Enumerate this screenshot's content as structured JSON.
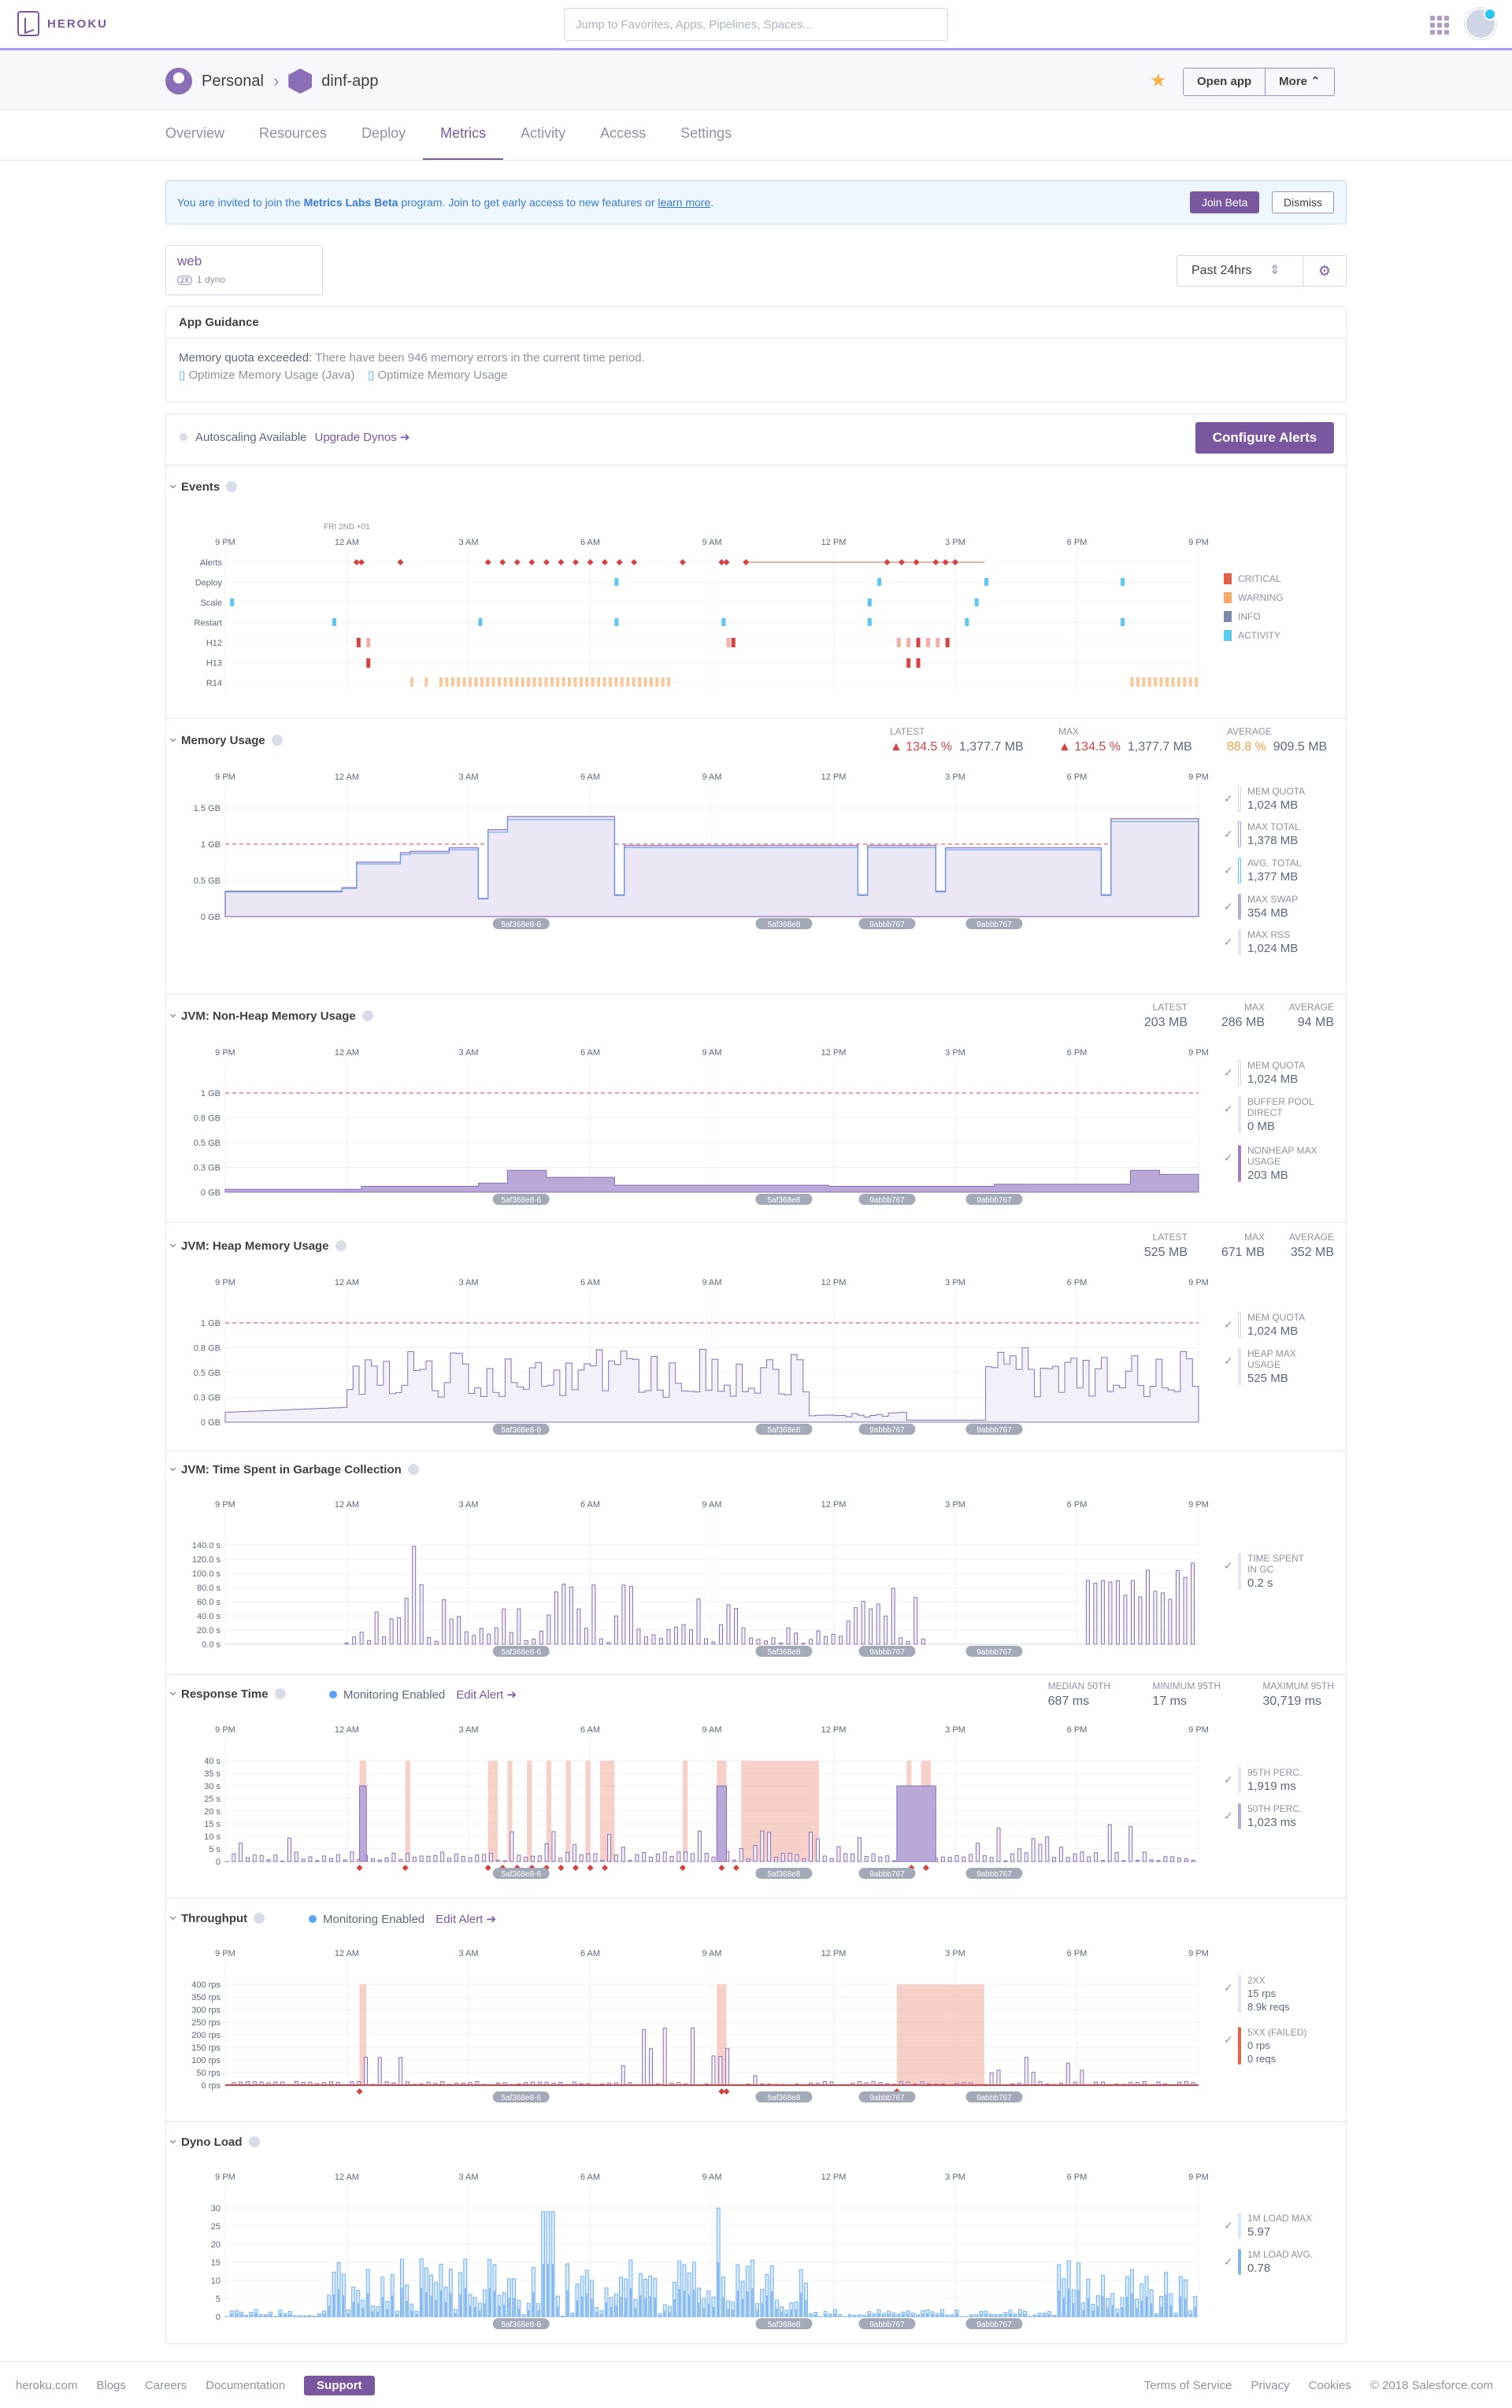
{
  "topbar": {
    "logo_text": "HEROKU",
    "search_placeholder": "Jump to Favorites, Apps, Pipelines, Spaces..."
  },
  "breadcrumb": {
    "owner": "Personal",
    "app": "dinf-app"
  },
  "header_buttons": {
    "open_app": "Open app",
    "more": "More ⌃"
  },
  "tabs": [
    "Overview",
    "Resources",
    "Deploy",
    "Metrics",
    "Activity",
    "Access",
    "Settings"
  ],
  "active_tab": "Metrics",
  "banner": {
    "text_pre": "You are invited to join the ",
    "program": "Metrics Labs Beta",
    "text_post": " program. Join to get early access to new features or ",
    "link": "learn more",
    "end": ".",
    "join": "Join Beta",
    "dismiss": "Dismiss"
  },
  "dyno": {
    "name": "web",
    "size": "1 dyno",
    "badge": "2X"
  },
  "time_range": "Past 24hrs",
  "guidance": {
    "title": "App Guidance",
    "quota_label": "Memory quota exceeded:",
    "quota_text": " There have been 946 memory errors in the current time period.",
    "link1": "Optimize Memory Usage (Java)",
    "link2": "Optimize Memory Usage"
  },
  "autoscaling": {
    "label": "Autoscaling Available",
    "upgrade": "Upgrade Dynos"
  },
  "configure_alerts": "Configure Alerts",
  "x_ticks": [
    "9 PM",
    "12 AM",
    "3 AM",
    "6 AM",
    "9 AM",
    "12 PM",
    "3 PM",
    "6 PM",
    "9 PM"
  ],
  "date_marker": "FRI 2ND +01",
  "releases": [
    "5af368e8-6",
    "5af368e8",
    "9abbb767",
    "9abbb767"
  ],
  "events": {
    "title": "Events",
    "rows": [
      "Alerts",
      "Deploy",
      "Scale",
      "Restart",
      "H12",
      "H13",
      "R14"
    ],
    "legend": [
      {
        "label": "CRITICAL",
        "color": "#e0634a"
      },
      {
        "label": "WARNING",
        "color": "#f5a96b"
      },
      {
        "label": "INFO",
        "color": "#7a8ba8"
      },
      {
        "label": "ACTIVITY",
        "color": "#5bc8f0"
      }
    ]
  },
  "memory": {
    "title": "Memory Usage",
    "stats": [
      {
        "label": "LATEST",
        "pct": "134.5 %",
        "val": "1,377.7 MB"
      },
      {
        "label": "MAX",
        "pct": "134.5 %",
        "val": "1,377.7 MB"
      },
      {
        "label": "AVERAGE",
        "pct": "88.8 %",
        "val": "909.5 MB"
      }
    ],
    "y_ticks": [
      "1.5 GB",
      "1 GB",
      "0.5 GB",
      "0 GB"
    ],
    "legend": [
      {
        "label": "MEM QUOTA",
        "value": "1,024 MB"
      },
      {
        "label": "MAX TOTAL",
        "value": "1,378 MB"
      },
      {
        "label": "AVG. TOTAL",
        "value": "1,377 MB"
      },
      {
        "label": "MAX SWAP",
        "value": "354 MB"
      },
      {
        "label": "MAX RSS",
        "value": "1,024 MB"
      }
    ]
  },
  "nonheap": {
    "title": "JVM: Non-Heap Memory Usage",
    "stats": [
      {
        "label": "LATEST",
        "val": "203 MB"
      },
      {
        "label": "MAX",
        "val": "286 MB"
      },
      {
        "label": "AVERAGE",
        "val": "94 MB"
      }
    ],
    "y_ticks": [
      "1 GB",
      "0.8 GB",
      "0.5 GB",
      "0.3 GB",
      "0 GB"
    ],
    "legend": [
      {
        "label": "MEM QUOTA",
        "value": "1,024 MB"
      },
      {
        "label": "BUFFER POOL DIRECT",
        "value": "0 MB"
      },
      {
        "label": "NONHEAP MAX USAGE",
        "value": "203 MB"
      }
    ]
  },
  "heap": {
    "title": "JVM: Heap Memory Usage",
    "stats": [
      {
        "label": "LATEST",
        "val": "525 MB"
      },
      {
        "label": "MAX",
        "val": "671 MB"
      },
      {
        "label": "AVERAGE",
        "val": "352 MB"
      }
    ],
    "y_ticks": [
      "1 GB",
      "0.8 GB",
      "0.5 GB",
      "0.3 GB",
      "0 GB"
    ],
    "legend": [
      {
        "label": "MEM QUOTA",
        "value": "1,024 MB"
      },
      {
        "label": "HEAP MAX USAGE",
        "value": "525 MB"
      }
    ]
  },
  "gc": {
    "title": "JVM: Time Spent in Garbage Collection",
    "y_ticks": [
      "140.0 s",
      "120.0 s",
      "100.0 s",
      "80.0 s",
      "60.0 s",
      "40.0 s",
      "20.0 s",
      "0.0 s"
    ],
    "legend": [
      {
        "label": "TIME SPENT IN GC",
        "value": "0.2 s"
      }
    ]
  },
  "response": {
    "title": "Response Time",
    "monitoring": "Monitoring Enabled",
    "edit_alert": "Edit Alert",
    "stats": [
      {
        "label": "MEDIAN 50TH",
        "val": "687 ms"
      },
      {
        "label": "MINIMUM 95TH",
        "val": "17 ms"
      },
      {
        "label": "MAXIMUM 95TH",
        "val": "30,719 ms"
      }
    ],
    "y_ticks": [
      "40 s",
      "35 s",
      "30 s",
      "25 s",
      "20 s",
      "15 s",
      "10 s",
      "5 s",
      "0"
    ],
    "legend": [
      {
        "label": "95TH PERC.",
        "value": "1,919 ms"
      },
      {
        "label": "50TH PERC.",
        "value": "1,023 ms"
      }
    ]
  },
  "throughput": {
    "title": "Throughput",
    "monitoring": "Monitoring Enabled",
    "edit_alert": "Edit Alert",
    "y_ticks": [
      "400 rps",
      "350 rps",
      "300 rps",
      "250 rps",
      "200 rps",
      "150 rps",
      "100 rps",
      "50 rps",
      "0 rps"
    ],
    "legend": [
      {
        "label": "2XX",
        "value": "15 rps",
        "value2": "8.9k reqs"
      },
      {
        "label": "5XX (FAILED)",
        "value": "0 rps",
        "value2": "0 reqs"
      }
    ]
  },
  "dynoload": {
    "title": "Dyno Load",
    "y_ticks": [
      "30",
      "25",
      "20",
      "15",
      "10",
      "5",
      "0"
    ],
    "legend": [
      {
        "label": "1M LOAD MAX",
        "value": "5.97"
      },
      {
        "label": "1M LOAD AVG.",
        "value": "0.78"
      }
    ]
  },
  "footer": {
    "links": [
      "heroku.com",
      "Blogs",
      "Careers",
      "Documentation"
    ],
    "support": "Support",
    "right": [
      "Terms of Service",
      "Privacy",
      "Cookies",
      "© 2018 Salesforce.com"
    ]
  }
}
